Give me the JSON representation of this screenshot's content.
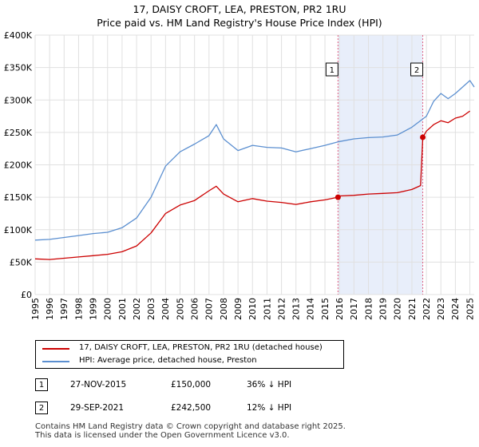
{
  "title_line1": "17, DAISY CROFT, LEA, PRESTON, PR2 1RU",
  "title_line2": "Price paid vs. HM Land Registry's House Price Index (HPI)",
  "colors": {
    "property": "#cc0000",
    "hpi": "#5b8fd0",
    "shade": "#e8eefa",
    "marker_line": "#e06080",
    "grid": "#e0e0e0"
  },
  "legend": {
    "property_label": "17, DAISY CROFT, LEA, PRESTON, PR2 1RU (detached house)",
    "hpi_label": "HPI: Average price, detached house, Preston"
  },
  "transactions": [
    {
      "num": "1",
      "date": "27-NOV-2015",
      "price": "£150,000",
      "hpi_diff": "36% ↓ HPI"
    },
    {
      "num": "2",
      "date": "29-SEP-2021",
      "price": "£242,500",
      "hpi_diff": "12% ↓ HPI"
    }
  ],
  "footer_line1": "Contains HM Land Registry data © Crown copyright and database right 2025.",
  "footer_line2": "This data is licensed under the Open Government Licence v3.0.",
  "chart_data": {
    "type": "line",
    "x_range": [
      1995,
      2025.3
    ],
    "ylim": [
      0,
      400000
    ],
    "y_ticks": [
      0,
      50000,
      100000,
      150000,
      200000,
      250000,
      300000,
      350000,
      400000
    ],
    "y_tick_labels": [
      "£0",
      "£50K",
      "£100K",
      "£150K",
      "£200K",
      "£250K",
      "£300K",
      "£350K",
      "£400K"
    ],
    "x_ticks": [
      1995,
      1996,
      1997,
      1998,
      1999,
      2000,
      2001,
      2002,
      2003,
      2004,
      2005,
      2006,
      2007,
      2008,
      2009,
      2010,
      2011,
      2012,
      2013,
      2014,
      2015,
      2016,
      2017,
      2018,
      2019,
      2020,
      2021,
      2022,
      2023,
      2024,
      2025
    ],
    "x_tick_labels": [
      "1995",
      "1996",
      "1997",
      "1998",
      "1999",
      "2000",
      "2001",
      "2002",
      "2003",
      "2004",
      "2005",
      "2006",
      "2007",
      "2008",
      "2009",
      "2010",
      "2011",
      "2012",
      "2013",
      "2014",
      "2015",
      "2016",
      "2017",
      "2018",
      "2019",
      "2020",
      "2021",
      "2022",
      "2023",
      "2024",
      "2025"
    ],
    "shaded_range": [
      2015.9,
      2021.75
    ],
    "markers": [
      {
        "label": "1",
        "x": 2015.9,
        "y": 150000
      },
      {
        "label": "2",
        "x": 2021.75,
        "y": 242500
      }
    ],
    "series": [
      {
        "name": "17, DAISY CROFT, LEA, PRESTON, PR2 1RU (detached house)",
        "x": [
          1995,
          1996,
          1997,
          1998,
          1999,
          2000,
          2001,
          2002,
          2003,
          2004,
          2005,
          2006,
          2007,
          2007.5,
          2008,
          2009,
          2010,
          2011,
          2012,
          2013,
          2014,
          2015,
          2015.9,
          2016,
          2017,
          2018,
          2019,
          2020,
          2021,
          2021.6,
          2021.75,
          2022,
          2022.5,
          2023,
          2023.5,
          2024,
          2024.5,
          2025
        ],
        "values": [
          55000,
          54000,
          56000,
          58000,
          60000,
          62000,
          66000,
          75000,
          95000,
          125000,
          138000,
          145000,
          160000,
          167000,
          155000,
          143000,
          148000,
          144000,
          142000,
          139000,
          143000,
          146000,
          150000,
          152000,
          153000,
          155000,
          156000,
          157000,
          162000,
          168000,
          242500,
          252000,
          262000,
          268000,
          265000,
          272000,
          275000,
          283000
        ]
      },
      {
        "name": "HPI: Average price, detached house, Preston",
        "x": [
          1995,
          1996,
          1997,
          1998,
          1999,
          2000,
          2001,
          2002,
          2003,
          2004,
          2005,
          2006,
          2007,
          2007.5,
          2008,
          2009,
          2010,
          2011,
          2012,
          2013,
          2014,
          2015,
          2016,
          2017,
          2018,
          2019,
          2020,
          2021,
          2022,
          2022.5,
          2023,
          2023.5,
          2024,
          2024.5,
          2025,
          2025.3
        ],
        "values": [
          84000,
          85000,
          88000,
          91000,
          94000,
          96000,
          103000,
          118000,
          150000,
          198000,
          220000,
          232000,
          245000,
          262000,
          240000,
          222000,
          230000,
          227000,
          226000,
          220000,
          225000,
          230000,
          236000,
          240000,
          242000,
          243000,
          246000,
          258000,
          275000,
          298000,
          310000,
          302000,
          310000,
          320000,
          330000,
          320000
        ]
      }
    ]
  }
}
